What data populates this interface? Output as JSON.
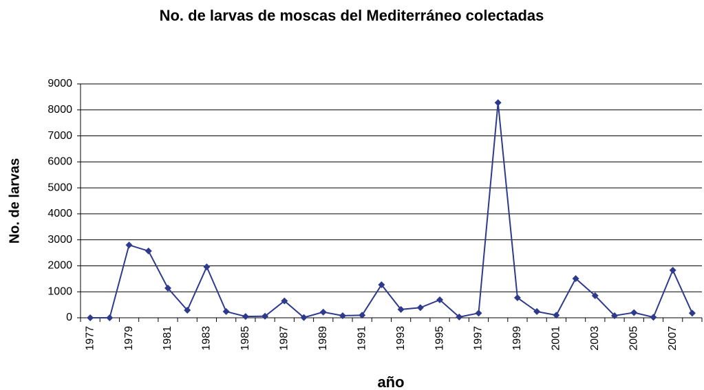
{
  "chart_data": {
    "type": "line",
    "title": "No. de larvas de moscas del Mediterráneo colectadas",
    "x_label": "año",
    "y_label": "No. de larvas",
    "categories": [
      "1977",
      null,
      "1979",
      null,
      "1981",
      null,
      "1983",
      null,
      "1985",
      null,
      "1987",
      null,
      "1989",
      null,
      "1991",
      null,
      "1993",
      null,
      "1995",
      null,
      "1997",
      null,
      "1999",
      null,
      "2001",
      null,
      "2003",
      null,
      "2005",
      null,
      "2007",
      null
    ],
    "series": [
      {
        "name": "No. de larvas",
        "color": "#2e3a8c",
        "values": [
          0,
          0,
          2800,
          2570,
          1140,
          290,
          1960,
          240,
          50,
          60,
          650,
          10,
          220,
          80,
          100,
          1270,
          320,
          390,
          690,
          30,
          180,
          8280,
          770,
          240,
          100,
          1510,
          850,
          80,
          200,
          20,
          1830,
          180
        ]
      }
    ],
    "ylim": [
      0,
      9000
    ],
    "yticks": [
      0,
      1000,
      2000,
      3000,
      4000,
      5000,
      6000,
      7000,
      8000,
      9000
    ],
    "grid": true,
    "legend": false
  }
}
